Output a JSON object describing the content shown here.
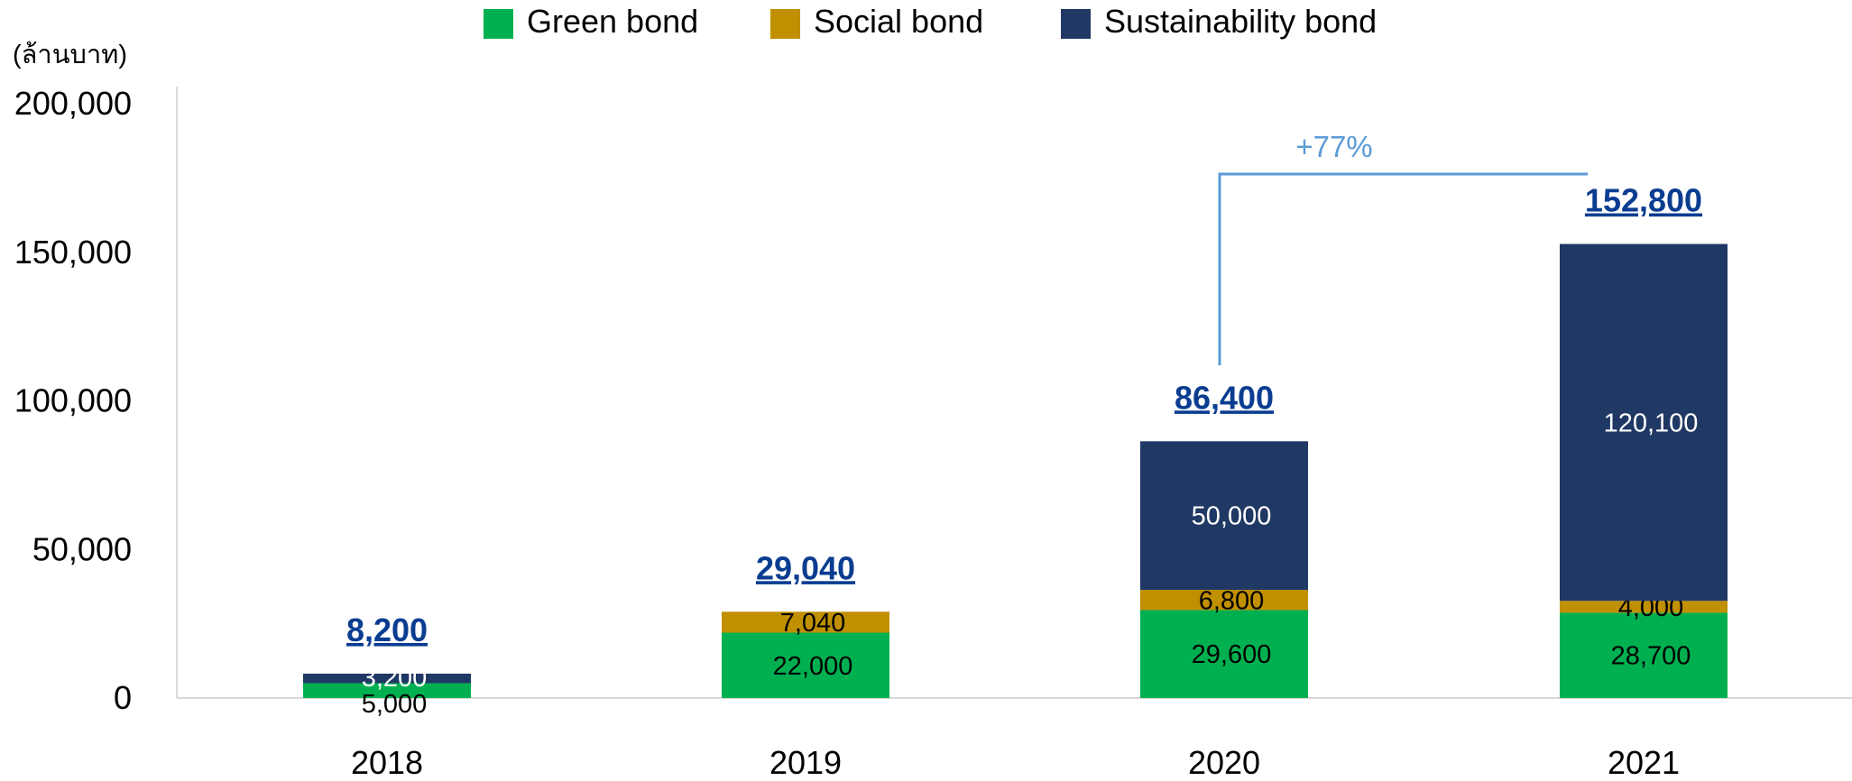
{
  "chart_data": {
    "type": "bar",
    "stacked": true,
    "unit_label": "(ล้านบาท)",
    "categories": [
      "2018",
      "2019",
      "2020",
      "2021"
    ],
    "series": [
      {
        "name": "Green bond",
        "color": "#00b050",
        "values": [
          5000,
          22000,
          29600,
          28700
        ]
      },
      {
        "name": "Social bond",
        "color": "#c09000",
        "values": [
          0,
          7040,
          6800,
          4000
        ]
      },
      {
        "name": "Sustainability bond",
        "color": "#203864",
        "values": [
          3200,
          0,
          50000,
          120100
        ]
      }
    ],
    "segment_labels": [
      [
        "5,000",
        "22,000",
        "29,600",
        "28,700"
      ],
      [
        "",
        "7,040",
        "6,800",
        "4,000"
      ],
      [
        "3,200",
        "",
        "50,000",
        "120,100"
      ]
    ],
    "totals": [
      "8,200",
      "29,040",
      "86,400",
      "152,800"
    ],
    "ylim": [
      0,
      200000
    ],
    "yticks": [
      "0",
      "50,000",
      "100,000",
      "150,000",
      "200,000"
    ],
    "grid": false,
    "legend_position": "top",
    "annotation": {
      "text": "+77%",
      "from_category": "2020",
      "to_category": "2021",
      "color": "#5b9bd5"
    }
  }
}
